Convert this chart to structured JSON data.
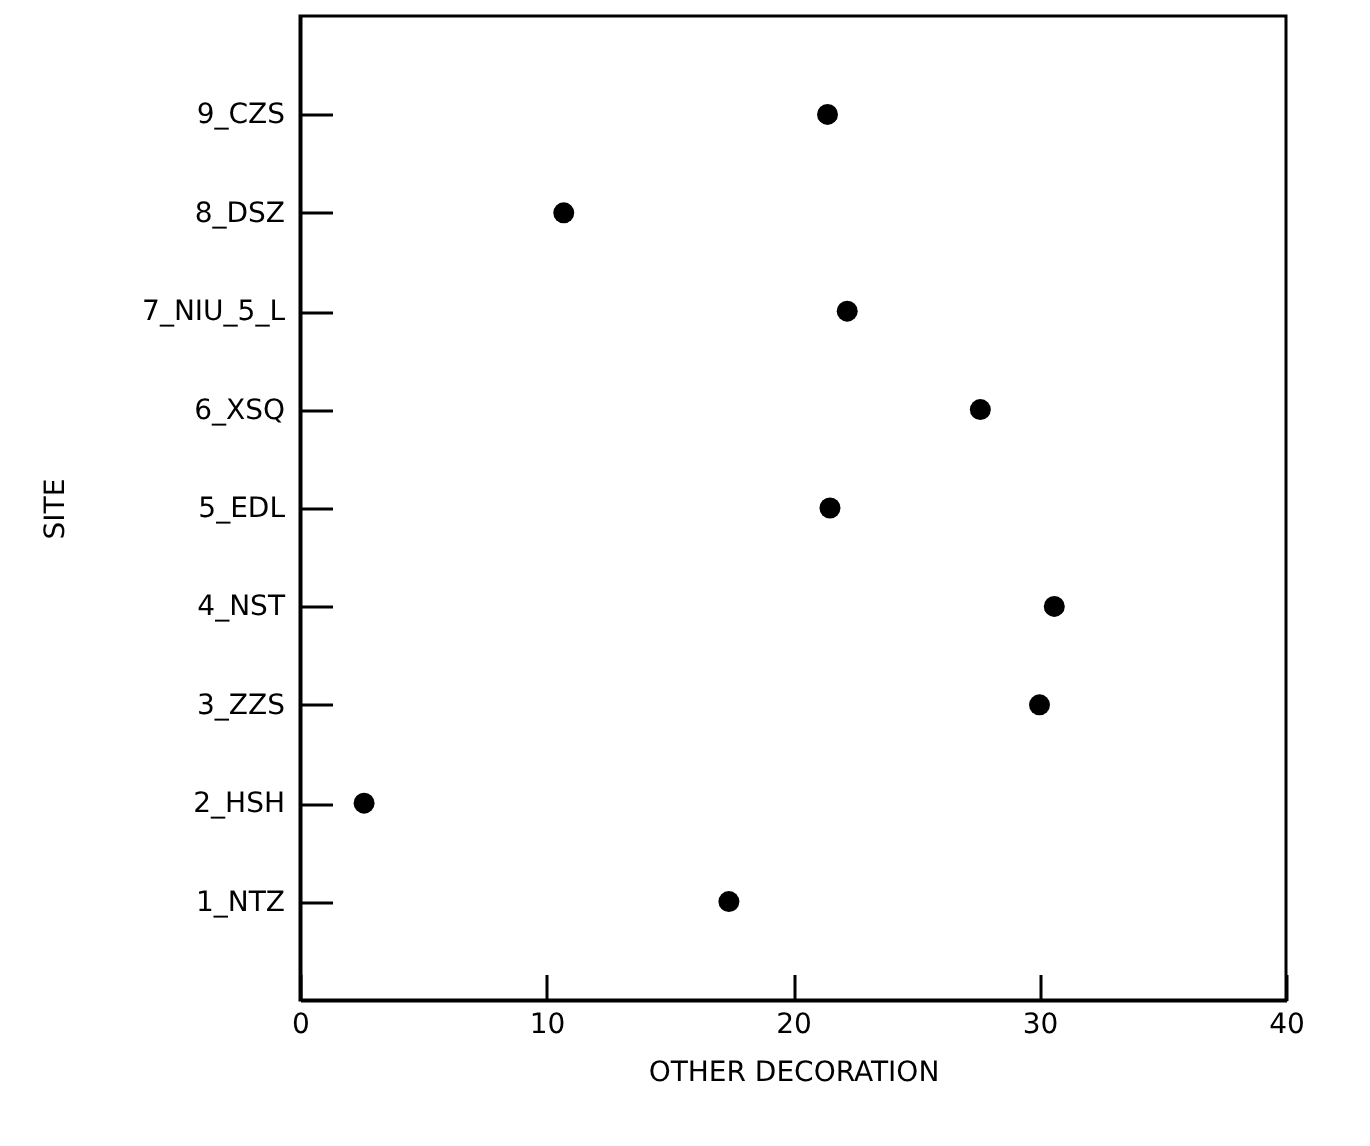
{
  "chart_data": {
    "type": "scatter",
    "orientation": "horizontal",
    "xlabel": "OTHER DECORATION",
    "ylabel": "SITE",
    "categories": [
      "9_CZS",
      "8_DSZ",
      "7_NIU_5_L",
      "6_XSQ",
      "5_EDL",
      "4_NST",
      "3_ZZS",
      "2_HSH",
      "1_NTZ"
    ],
    "series": [
      {
        "color": "#000000",
        "values": [
          21.4,
          10.7,
          22.2,
          27.6,
          21.5,
          30.6,
          30.0,
          2.6,
          17.4
        ]
      }
    ],
    "xlim": [
      0,
      40
    ],
    "xticks": [
      0,
      10,
      20,
      30,
      40
    ],
    "marker": "circle"
  }
}
